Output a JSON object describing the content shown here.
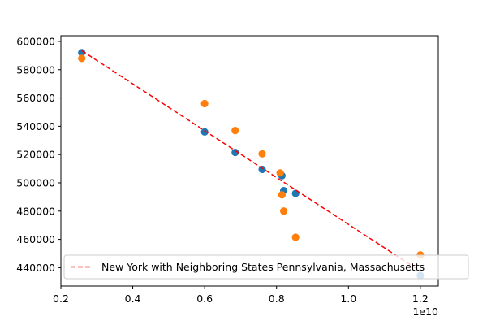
{
  "chart_data": {
    "type": "scatter",
    "title": "",
    "xlabel": "",
    "ylabel": "",
    "x_offset_label": "1e10",
    "xlim": [
      0.2,
      1.25
    ],
    "ylim": [
      427000,
      604000
    ],
    "x_ticks": [
      0.2,
      0.4,
      0.6,
      0.8,
      1.0,
      1.2
    ],
    "x_tick_labels": [
      "0.2",
      "0.4",
      "0.6",
      "0.8",
      "1.0",
      "1.2"
    ],
    "y_ticks": [
      440000,
      460000,
      480000,
      500000,
      520000,
      540000,
      560000,
      580000,
      600000
    ],
    "y_tick_labels": [
      "440000",
      "460000",
      "480000",
      "500000",
      "520000",
      "540000",
      "560000",
      "580000",
      "600000"
    ],
    "grid": false,
    "legend_position": "lower-right",
    "series": [
      {
        "kind": "scatter",
        "color": "#1f77b4",
        "points": [
          [
            0.258,
            592000
          ],
          [
            0.6,
            536000
          ],
          [
            0.685,
            521500
          ],
          [
            0.76,
            509500
          ],
          [
            0.815,
            505000
          ],
          [
            0.82,
            494500
          ],
          [
            0.853,
            492500
          ],
          [
            1.2,
            434500
          ]
        ]
      },
      {
        "kind": "scatter",
        "color": "#ff7f0e",
        "points": [
          [
            0.258,
            588000
          ],
          [
            0.6,
            556000
          ],
          [
            0.685,
            537000
          ],
          [
            0.76,
            520500
          ],
          [
            0.81,
            507000
          ],
          [
            0.815,
            491500
          ],
          [
            0.82,
            480000
          ],
          [
            0.853,
            461500
          ],
          [
            1.2,
            449000
          ]
        ]
      },
      {
        "kind": "line",
        "name": "New York with Neighboring States Pennsylvania, Massachusetts",
        "color": "#ff0000",
        "dash": "dashed",
        "x": [
          0.258,
          1.2
        ],
        "y": [
          593500,
          437500
        ]
      }
    ]
  }
}
